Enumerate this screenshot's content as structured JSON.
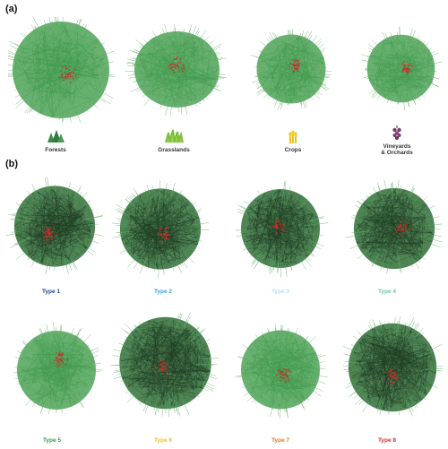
{
  "panels": {
    "a": {
      "label": "(a)",
      "habitats": [
        {
          "label": "Forests",
          "icon": "tree-icon",
          "color": "#3d8a4a"
        },
        {
          "label": "Grasslands",
          "icon": "grass-icon",
          "color": "#7bbf3a"
        },
        {
          "label": "Crops",
          "icon": "wheat-icon",
          "color": "#e8c21a"
        },
        {
          "label": "Vineyards\n& Orchards",
          "label_line1": "Vineyards",
          "label_line2": "& Orchards",
          "icon": "grape-icon",
          "color": "#7a3f6b"
        }
      ]
    },
    "b": {
      "label": "(b)",
      "types": [
        {
          "label": "Type 1",
          "color": "#1f3f8f"
        },
        {
          "label": "Type 2",
          "color": "#3aa0d8"
        },
        {
          "label": "Type 3",
          "color": "#b9e0f0"
        },
        {
          "label": "Type 4",
          "color": "#6cc4a8"
        },
        {
          "label": "Type 5",
          "color": "#3b9a45"
        },
        {
          "label": "Type 6",
          "color": "#f2c21b"
        },
        {
          "label": "Type 7",
          "color": "#e27a23"
        },
        {
          "label": "Type 8",
          "color": "#d42a2a"
        }
      ]
    }
  },
  "colors": {
    "edge_green": "#3f9a4e",
    "edge_dark": "#1e3b22",
    "core_red": "#c9302c"
  }
}
